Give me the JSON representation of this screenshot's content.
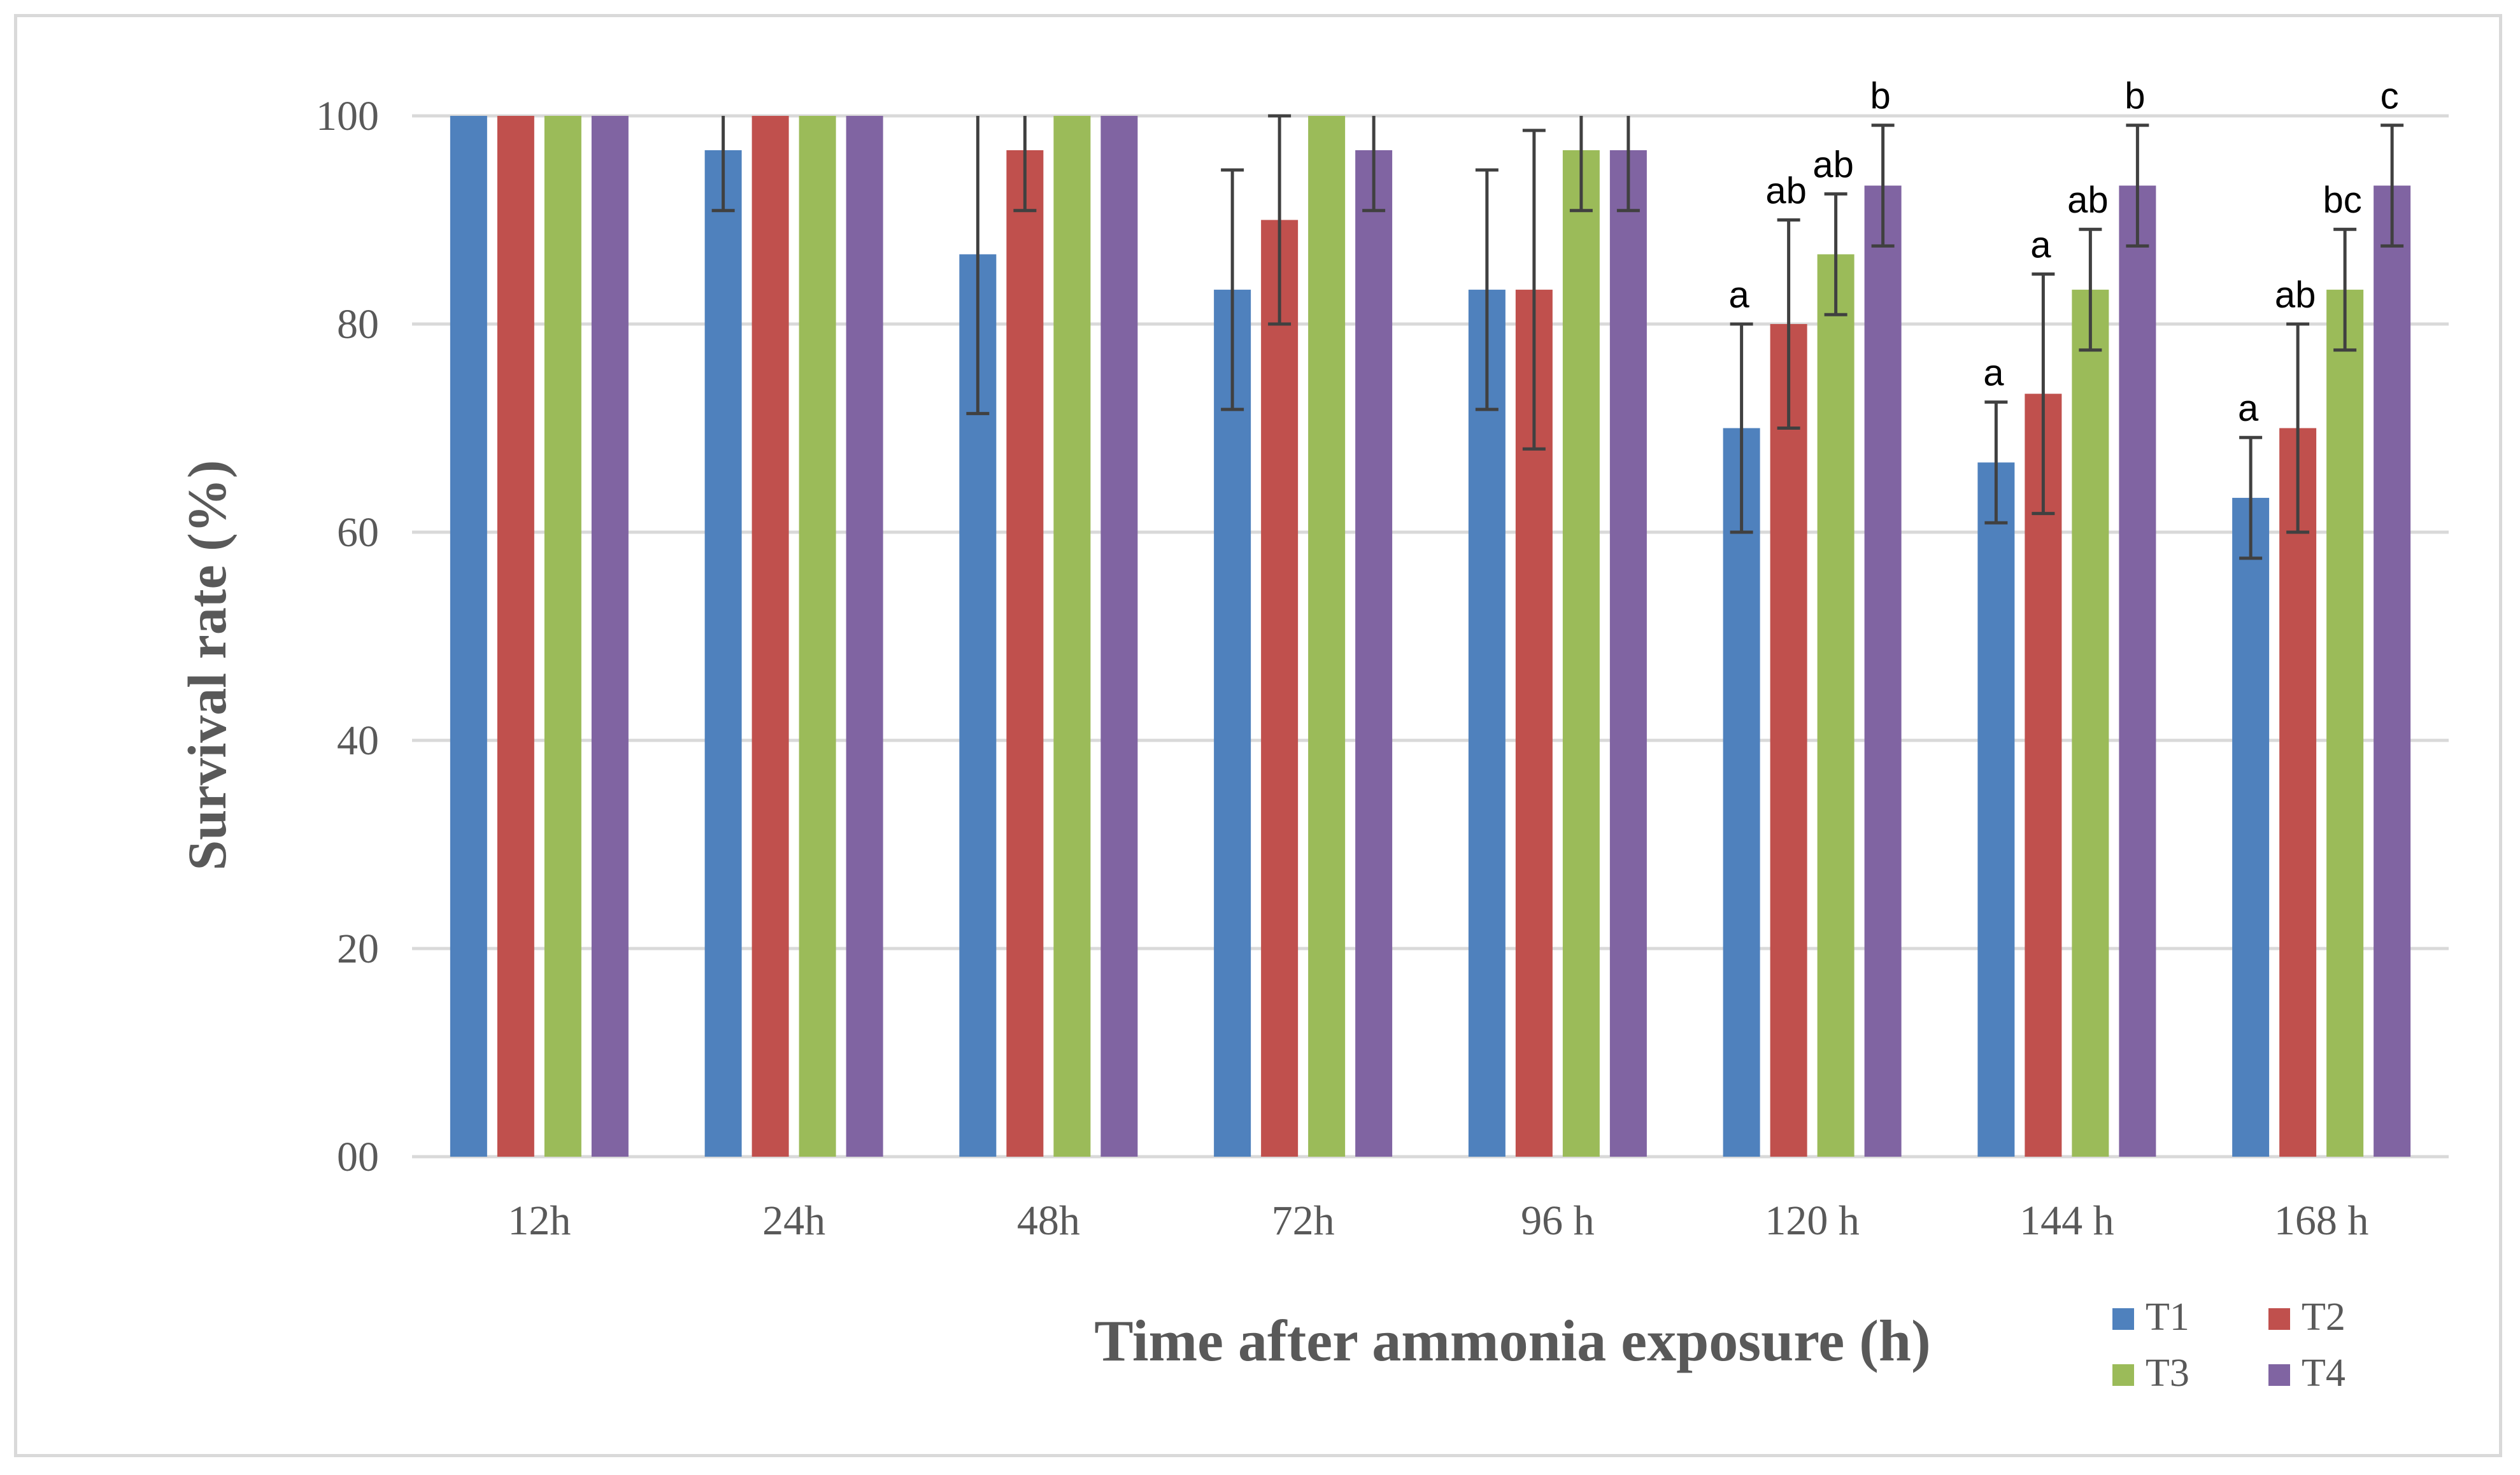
{
  "chart_data": {
    "type": "bar",
    "title": "",
    "xlabel": "Time after ammonia exposure (h)",
    "ylabel": "Survival rate (%)",
    "ylim": [
      0,
      100
    ],
    "yticks": [
      0,
      20,
      40,
      60,
      80,
      100
    ],
    "ytick_labels": [
      "00",
      "20",
      "40",
      "60",
      "80",
      "100"
    ],
    "grid": true,
    "legend_position": "bottom-right",
    "categories": [
      "12h",
      "24h",
      "48h",
      "72h",
      "96 h",
      "120 h",
      "144 h",
      "168 h"
    ],
    "series": [
      {
        "name": "T1",
        "color": "#4f81bd",
        "values": [
          100,
          96.7,
          86.7,
          83.3,
          83.3,
          70,
          66.7,
          63.3
        ],
        "errors": [
          0,
          5.8,
          15.3,
          11.5,
          11.5,
          10,
          5.8,
          5.8
        ],
        "labels": [
          "",
          "",
          "",
          "",
          "",
          "a",
          "a",
          "a"
        ]
      },
      {
        "name": "T2",
        "color": "#c0504d",
        "values": [
          100,
          100,
          96.7,
          90,
          83.3,
          80,
          73.3,
          70
        ],
        "errors": [
          0,
          0,
          5.8,
          10,
          15.3,
          10,
          11.5,
          10
        ],
        "labels": [
          "",
          "",
          "",
          "",
          "",
          "ab",
          "a",
          "ab"
        ]
      },
      {
        "name": "T3",
        "color": "#9bbb59",
        "values": [
          100,
          100,
          100,
          100,
          96.7,
          86.7,
          83.3,
          83.3
        ],
        "errors": [
          0,
          0,
          0,
          0,
          5.8,
          5.8,
          5.8,
          5.8
        ],
        "labels": [
          "",
          "",
          "",
          "",
          "",
          "ab",
          "ab",
          "bc"
        ]
      },
      {
        "name": "T4",
        "color": "#8064a2",
        "values": [
          100,
          100,
          100,
          96.7,
          96.7,
          93.3,
          93.3,
          93.3
        ],
        "errors": [
          0,
          0,
          0,
          5.8,
          5.8,
          5.8,
          5.8,
          5.8
        ],
        "labels": [
          "",
          "",
          "",
          "",
          "",
          "b",
          "b",
          "c"
        ]
      }
    ]
  },
  "colors": {
    "grid": "#d9d9d9",
    "axis_text": "#595959",
    "error_bar": "#404040",
    "frame": "#d9d9d9"
  }
}
